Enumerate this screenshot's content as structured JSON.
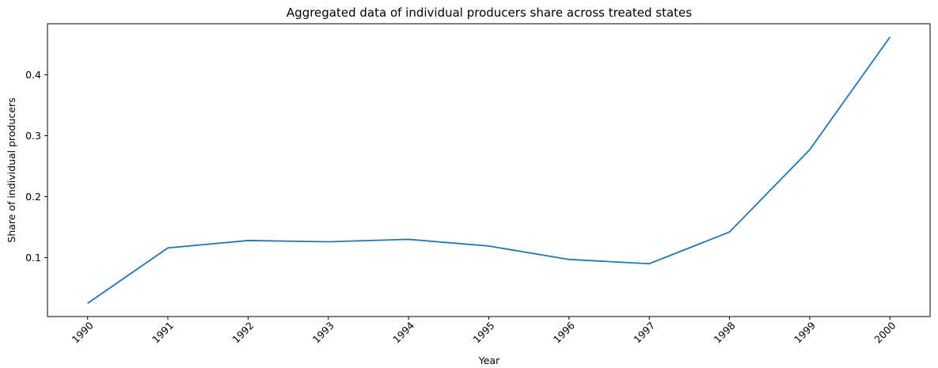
{
  "chart_data": {
    "type": "line",
    "title": "Aggregated data of individual producers share across treated states",
    "xlabel": "Year",
    "ylabel": "Share of individual producers",
    "x": [
      1990,
      1991,
      1992,
      1993,
      1994,
      1995,
      1996,
      1997,
      1998,
      1999,
      2000
    ],
    "series": [
      {
        "values": [
          0.025,
          0.116,
          0.128,
          0.126,
          0.13,
          0.119,
          0.097,
          0.09,
          0.142,
          0.277,
          0.462
        ]
      }
    ],
    "yticks": [
      "0.1",
      "0.2",
      "0.3",
      "0.4"
    ],
    "xticks": [
      "1990",
      "1991",
      "1992",
      "1993",
      "1994",
      "1995",
      "1996",
      "1997",
      "1998",
      "1999",
      "2000"
    ],
    "xlim": [
      1989.5,
      2000.5
    ],
    "ylim": [
      0.0033,
      0.4837
    ],
    "line_color": "#1f77b4",
    "grid": false,
    "legend": false
  }
}
